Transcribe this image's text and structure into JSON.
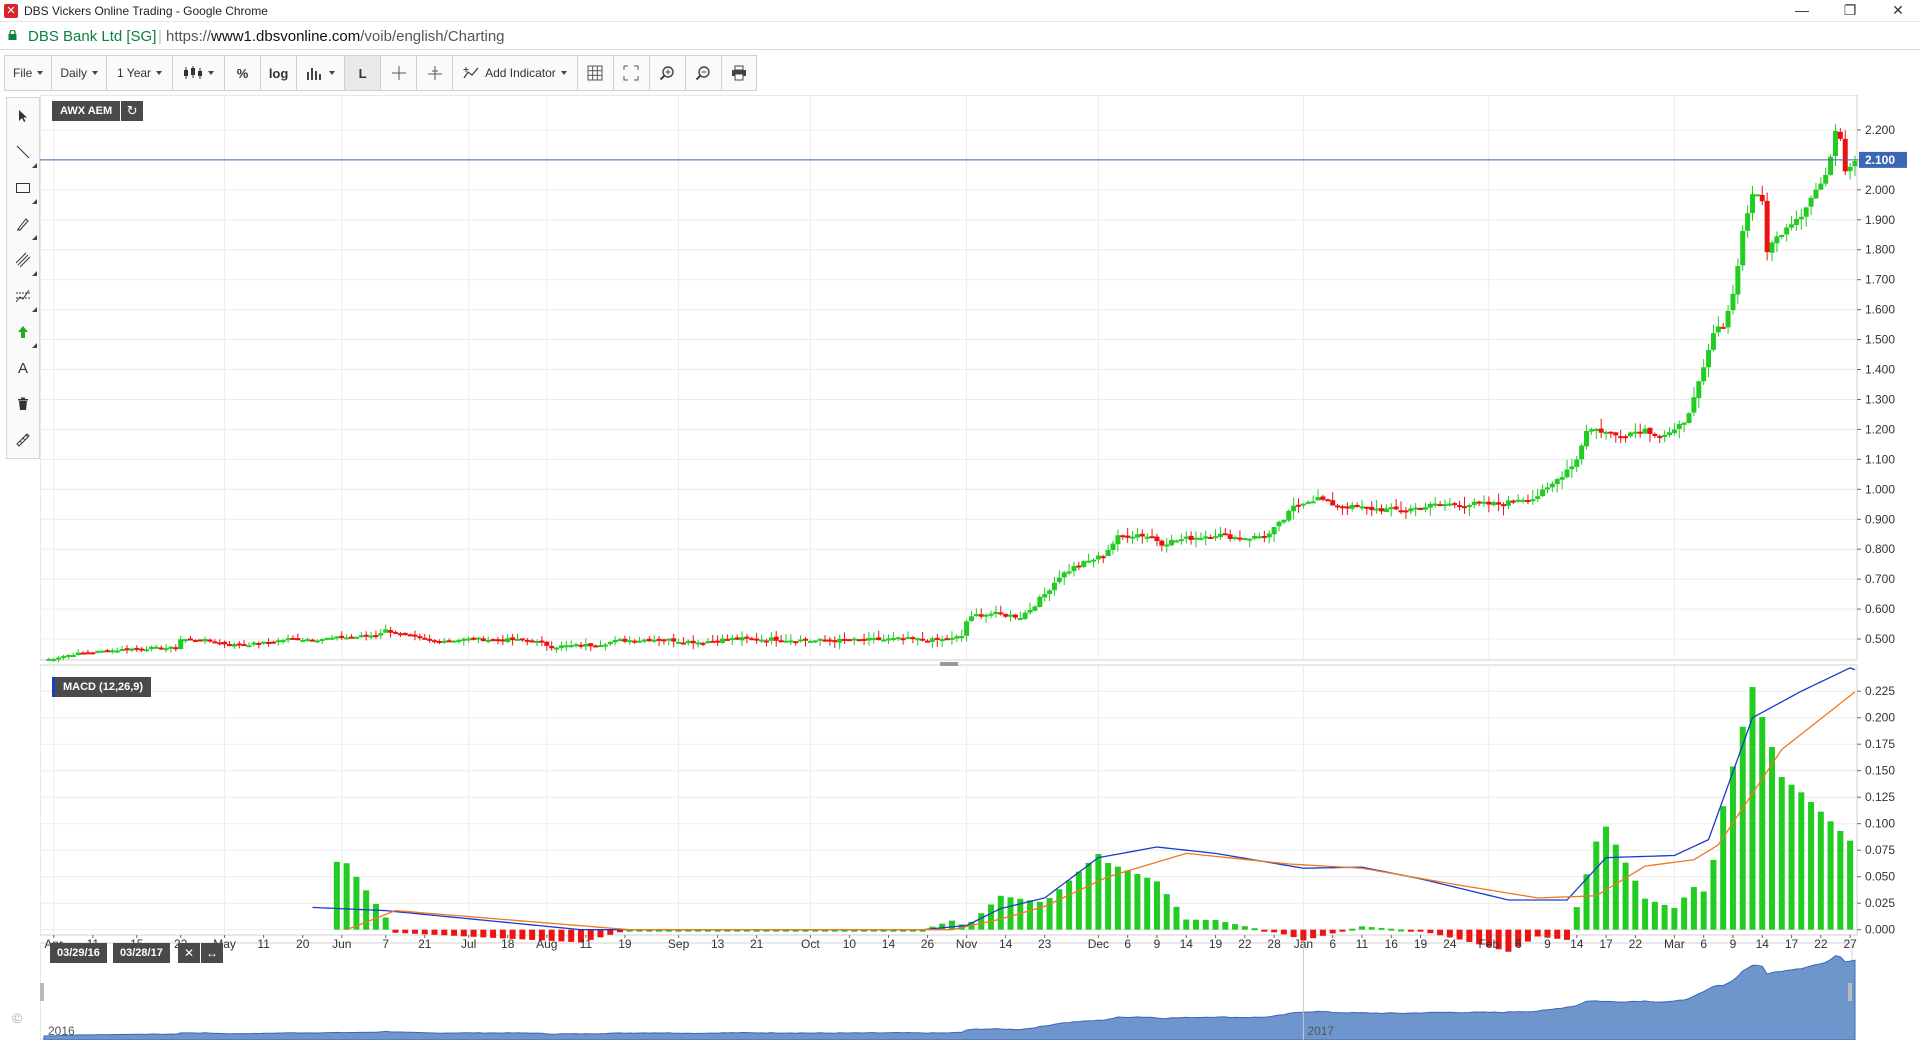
{
  "window": {
    "title": "DBS Vickers Online Trading - Google Chrome",
    "minimize_glyph": "—",
    "restore_glyph": "❐",
    "close_glyph": "✕"
  },
  "address": {
    "secure_label": "DBS Bank Ltd [SG]",
    "url_scheme": "https://",
    "url_host": "www1.dbsvonline.com",
    "url_path": "/voib/english/Charting"
  },
  "toolbar": {
    "file_label": "File",
    "interval_label": "Daily",
    "range_label": "1 Year",
    "percent_label": "%",
    "log_label": "log",
    "l_label": "L",
    "add_indicator_label": "Add Indicator"
  },
  "left_tools": [
    "pointer-icon",
    "line-icon",
    "rectangle-icon",
    "pen-icon",
    "channel-icon",
    "fibonacci-icon",
    "arrow-up-icon",
    "text-icon",
    "trash-icon",
    "ruler-icon"
  ],
  "symbol": {
    "name": "AWX AEM",
    "refresh_icon": "refresh-icon"
  },
  "macd": {
    "label": "MACD (12,26,9)"
  },
  "navigator": {
    "start_date": "03/29/16",
    "end_date": "03/28/17",
    "close_glyph": "✕",
    "expand_glyph": "↔"
  },
  "copyright_glyph": "©",
  "colors": {
    "up": "#22cc22",
    "down": "#ee1111",
    "macd": "#1a3ccc",
    "signal": "#f07820",
    "price_tag": "#3a68b4",
    "navigator": "#6f96cc"
  },
  "chart_data": {
    "type": "candlestick",
    "current_price": "2.100",
    "price_axis": {
      "ylim": [
        0.43,
        2.3
      ],
      "ticks": [
        "0.500",
        "0.600",
        "0.700",
        "0.800",
        "0.900",
        "1.000",
        "1.100",
        "1.200",
        "1.300",
        "1.400",
        "1.500",
        "1.600",
        "1.700",
        "1.800",
        "1.900",
        "2.000",
        "2.100",
        "2.200"
      ]
    },
    "macd_axis": {
      "ylim": [
        -0.005,
        0.245
      ],
      "ticks": [
        "0.000",
        "0.025",
        "0.050",
        "0.075",
        "0.100",
        "0.125",
        "0.150",
        "0.175",
        "0.200",
        "0.225"
      ]
    },
    "x_ticks": [
      {
        "label": "Apr",
        "i": 2
      },
      {
        "label": "11",
        "i": 10
      },
      {
        "label": "15",
        "i": 19
      },
      {
        "label": "22",
        "i": 28
      },
      {
        "label": "May",
        "i": 37
      },
      {
        "label": "11",
        "i": 45
      },
      {
        "label": "20",
        "i": 53
      },
      {
        "label": "Jun",
        "i": 61
      },
      {
        "label": "7",
        "i": 70
      },
      {
        "label": "21",
        "i": 78
      },
      {
        "label": "Jul",
        "i": 87
      },
      {
        "label": "18",
        "i": 95
      },
      {
        "label": "Aug",
        "i": 103
      },
      {
        "label": "11",
        "i": 111
      },
      {
        "label": "19",
        "i": 119
      },
      {
        "label": "Sep",
        "i": 130
      },
      {
        "label": "13",
        "i": 138
      },
      {
        "label": "21",
        "i": 146
      },
      {
        "label": "Oct",
        "i": 157
      },
      {
        "label": "10",
        "i": 165
      },
      {
        "label": "14",
        "i": 173
      },
      {
        "label": "26",
        "i": 181
      },
      {
        "label": "Nov",
        "i": 189
      },
      {
        "label": "14",
        "i": 197
      },
      {
        "label": "23",
        "i": 205
      },
      {
        "label": "Dec",
        "i": 216
      },
      {
        "label": "6",
        "i": 222
      },
      {
        "label": "9",
        "i": 228
      },
      {
        "label": "14",
        "i": 234
      },
      {
        "label": "19",
        "i": 240
      },
      {
        "label": "22",
        "i": 246
      },
      {
        "label": "28",
        "i": 252
      },
      {
        "label": "Jan",
        "i": 258
      },
      {
        "label": "6",
        "i": 264
      },
      {
        "label": "11",
        "i": 270
      },
      {
        "label": "16",
        "i": 276
      },
      {
        "label": "19",
        "i": 282
      },
      {
        "label": "24",
        "i": 288
      },
      {
        "label": "Feb",
        "i": 296
      },
      {
        "label": "6",
        "i": 302
      },
      {
        "label": "9",
        "i": 308
      },
      {
        "label": "14",
        "i": 314
      },
      {
        "label": "17",
        "i": 320
      },
      {
        "label": "22",
        "i": 326
      },
      {
        "label": "Mar",
        "i": 334
      },
      {
        "label": "6",
        "i": 340
      },
      {
        "label": "9",
        "i": 346
      },
      {
        "label": "14",
        "i": 352
      },
      {
        "label": "17",
        "i": 358
      },
      {
        "label": "22",
        "i": 364
      },
      {
        "label": "27",
        "i": 370
      }
    ],
    "nav_labels": [
      "2016",
      "2017"
    ],
    "price_keyframes": [
      [
        0,
        0.43
      ],
      [
        3,
        0.44
      ],
      [
        6,
        0.45
      ],
      [
        12,
        0.46
      ],
      [
        20,
        0.47
      ],
      [
        27,
        0.47
      ],
      [
        28,
        0.5
      ],
      [
        34,
        0.495
      ],
      [
        38,
        0.48
      ],
      [
        44,
        0.485
      ],
      [
        50,
        0.5
      ],
      [
        56,
        0.5
      ],
      [
        66,
        0.51
      ],
      [
        68,
        0.515
      ],
      [
        70,
        0.53
      ],
      [
        74,
        0.51
      ],
      [
        80,
        0.495
      ],
      [
        88,
        0.5
      ],
      [
        100,
        0.495
      ],
      [
        104,
        0.475
      ],
      [
        112,
        0.48
      ],
      [
        118,
        0.495
      ],
      [
        126,
        0.5
      ],
      [
        134,
        0.49
      ],
      [
        140,
        0.5
      ],
      [
        150,
        0.5
      ],
      [
        158,
        0.495
      ],
      [
        164,
        0.495
      ],
      [
        176,
        0.5
      ],
      [
        182,
        0.495
      ],
      [
        186,
        0.5
      ],
      [
        188,
        0.51
      ],
      [
        189,
        0.56
      ],
      [
        191,
        0.58
      ],
      [
        194,
        0.585
      ],
      [
        200,
        0.575
      ],
      [
        202,
        0.6
      ],
      [
        205,
        0.65
      ],
      [
        208,
        0.71
      ],
      [
        211,
        0.74
      ],
      [
        214,
        0.76
      ],
      [
        217,
        0.78
      ],
      [
        220,
        0.84
      ],
      [
        224,
        0.85
      ],
      [
        227,
        0.84
      ],
      [
        229,
        0.82
      ],
      [
        232,
        0.83
      ],
      [
        236,
        0.84
      ],
      [
        240,
        0.85
      ],
      [
        244,
        0.84
      ],
      [
        248,
        0.84
      ],
      [
        251,
        0.85
      ],
      [
        254,
        0.9
      ],
      [
        256,
        0.94
      ],
      [
        258,
        0.96
      ],
      [
        261,
        0.97
      ],
      [
        264,
        0.95
      ],
      [
        268,
        0.94
      ],
      [
        272,
        0.935
      ],
      [
        278,
        0.93
      ],
      [
        282,
        0.94
      ],
      [
        286,
        0.95
      ],
      [
        292,
        0.95
      ],
      [
        298,
        0.95
      ],
      [
        300,
        0.955
      ],
      [
        302,
        0.97
      ],
      [
        305,
        0.97
      ],
      [
        308,
        1.0
      ],
      [
        311,
        1.05
      ],
      [
        314,
        1.1
      ],
      [
        316,
        1.2
      ],
      [
        318,
        1.2
      ],
      [
        322,
        1.18
      ],
      [
        328,
        1.2
      ],
      [
        331,
        1.18
      ],
      [
        334,
        1.19
      ],
      [
        336,
        1.23
      ],
      [
        338,
        1.3
      ],
      [
        340,
        1.4
      ],
      [
        342,
        1.52
      ],
      [
        344,
        1.55
      ],
      [
        346,
        1.65
      ],
      [
        348,
        1.86
      ],
      [
        350,
        1.99
      ],
      [
        352,
        1.96
      ],
      [
        353,
        1.8
      ],
      [
        355,
        1.84
      ],
      [
        357,
        1.88
      ],
      [
        360,
        1.92
      ],
      [
        363,
        2.0
      ],
      [
        365,
        2.04
      ],
      [
        367,
        2.2
      ],
      [
        368,
        2.18
      ],
      [
        369,
        2.07
      ],
      [
        371,
        2.1
      ]
    ],
    "macd_keyframes": [
      [
        0,
        0.0
      ],
      [
        50,
        0.0
      ],
      [
        55,
        0.021
      ],
      [
        70,
        0.018
      ],
      [
        110,
        0.0
      ],
      [
        180,
        0.0
      ],
      [
        189,
        0.004
      ],
      [
        196,
        0.02
      ],
      [
        205,
        0.03
      ],
      [
        216,
        0.068
      ],
      [
        228,
        0.078
      ],
      [
        240,
        0.072
      ],
      [
        258,
        0.058
      ],
      [
        270,
        0.059
      ],
      [
        282,
        0.048
      ],
      [
        300,
        0.028
      ],
      [
        312,
        0.028
      ],
      [
        320,
        0.068
      ],
      [
        334,
        0.07
      ],
      [
        341,
        0.085
      ],
      [
        350,
        0.2
      ],
      [
        360,
        0.225
      ],
      [
        370,
        0.247
      ],
      [
        374,
        0.24
      ]
    ],
    "signal_keyframes": [
      [
        0,
        0.0
      ],
      [
        62,
        0.0
      ],
      [
        72,
        0.018
      ],
      [
        120,
        0.0
      ],
      [
        186,
        0.0
      ],
      [
        196,
        0.01
      ],
      [
        205,
        0.022
      ],
      [
        218,
        0.05
      ],
      [
        234,
        0.072
      ],
      [
        255,
        0.062
      ],
      [
        270,
        0.058
      ],
      [
        290,
        0.042
      ],
      [
        306,
        0.03
      ],
      [
        318,
        0.032
      ],
      [
        328,
        0.06
      ],
      [
        338,
        0.066
      ],
      [
        343,
        0.08
      ],
      [
        356,
        0.17
      ],
      [
        372,
        0.228
      ],
      [
        374,
        0.23
      ]
    ]
  }
}
